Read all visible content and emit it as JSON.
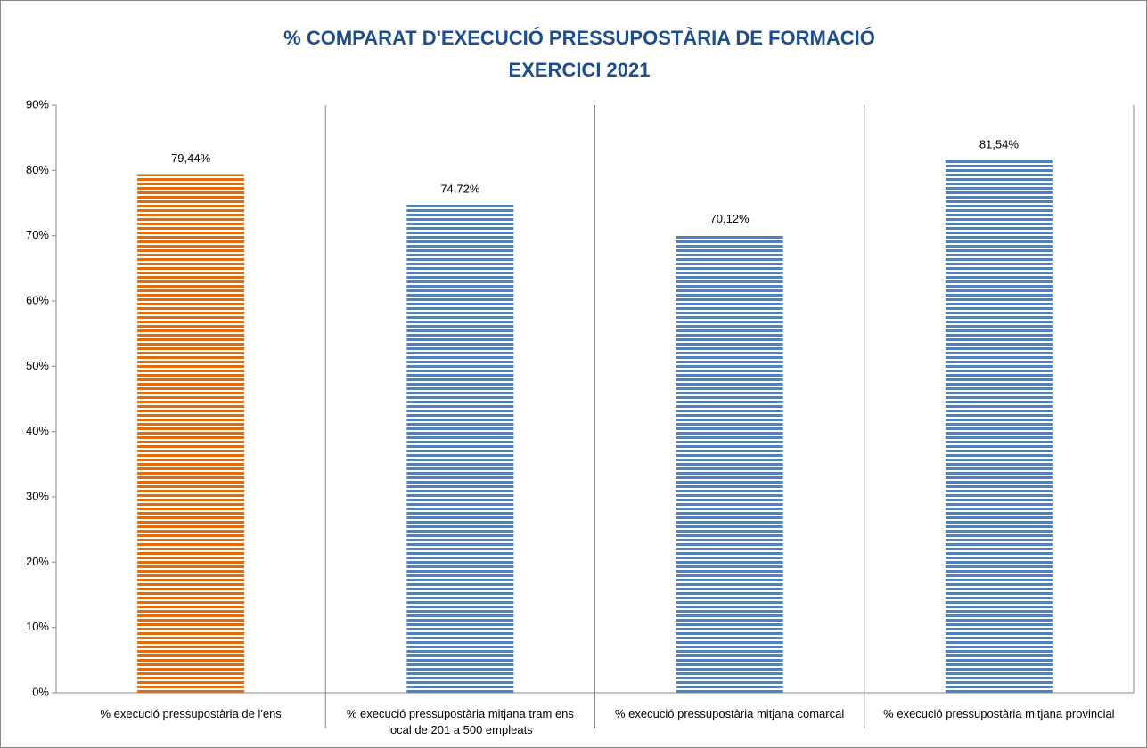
{
  "chart_data": {
    "type": "bar",
    "title": "% COMPARAT D'EXECUCIÓ PRESSUPOSTÀRIA DE FORMACIÓ",
    "subtitle": "EXERCICI 2021",
    "categories": [
      "% execució pressupostària de l'ens",
      "% execució pressupostària mitjana tram ens local de 201 a 500 empleats",
      "% execució pressupostària mitjana comarcal",
      "% execució pressupostària mitjana provincial"
    ],
    "values": [
      79.44,
      74.72,
      70.12,
      81.54
    ],
    "value_labels": [
      "79,44%",
      "74,72%",
      "70,12%",
      "81,54%"
    ],
    "colors": [
      "#e36c0a",
      "#4f81bd",
      "#4f81bd",
      "#4f81bd"
    ],
    "ylim": [
      0,
      90
    ],
    "yticks": [
      {
        "value": 0,
        "label": "0%"
      },
      {
        "value": 10,
        "label": "10%"
      },
      {
        "value": 20,
        "label": "20%"
      },
      {
        "value": 30,
        "label": "30%"
      },
      {
        "value": 40,
        "label": "40%"
      },
      {
        "value": 50,
        "label": "50%"
      },
      {
        "value": 60,
        "label": "60%"
      },
      {
        "value": 70,
        "label": "70%"
      },
      {
        "value": 80,
        "label": "80%"
      },
      {
        "value": 90,
        "label": "90%"
      }
    ],
    "grid": false
  }
}
